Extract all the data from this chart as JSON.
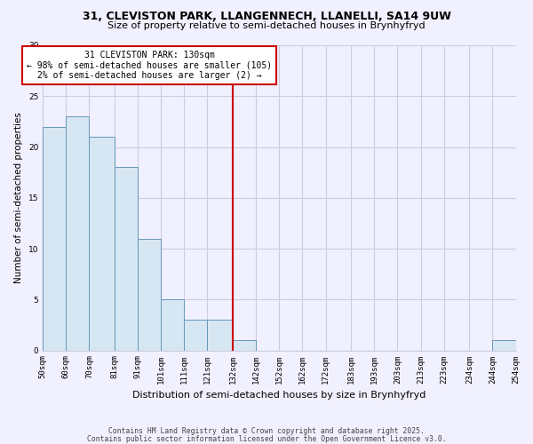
{
  "title_line1": "31, CLEVISTON PARK, LLANGENNECH, LLANELLI, SA14 9UW",
  "title_line2": "Size of property relative to semi-detached houses in Brynhyfryd",
  "xlabel": "Distribution of semi-detached houses by size in Brynhyfryd",
  "ylabel": "Number of semi-detached properties",
  "bins": [
    50,
    60,
    70,
    81,
    91,
    101,
    111,
    121,
    132,
    142,
    152,
    162,
    172,
    183,
    193,
    203,
    213,
    223,
    234,
    244,
    254
  ],
  "counts": [
    22,
    23,
    21,
    18,
    11,
    5,
    3,
    3,
    1,
    0,
    0,
    0,
    0,
    0,
    0,
    0,
    0,
    0,
    0,
    1
  ],
  "tick_labels": [
    "50sqm",
    "60sqm",
    "70sqm",
    "81sqm",
    "91sqm",
    "101sqm",
    "111sqm",
    "121sqm",
    "132sqm",
    "142sqm",
    "152sqm",
    "162sqm",
    "172sqm",
    "183sqm",
    "193sqm",
    "203sqm",
    "213sqm",
    "223sqm",
    "234sqm",
    "244sqm",
    "254sqm"
  ],
  "bar_color": "#d6e6f2",
  "bar_edge_color": "#6699bb",
  "vline_x": 132,
  "vline_color": "#cc0000",
  "annotation_title": "31 CLEVISTON PARK: 130sqm",
  "annotation_line1": "← 98% of semi-detached houses are smaller (105)",
  "annotation_line2": "2% of semi-detached houses are larger (2) →",
  "ylim": [
    0,
    30
  ],
  "yticks": [
    0,
    5,
    10,
    15,
    20,
    25,
    30
  ],
  "footnote1": "Contains HM Land Registry data © Crown copyright and database right 2025.",
  "footnote2": "Contains public sector information licensed under the Open Government Licence v3.0.",
  "bg_color": "#f0f0ff",
  "grid_color": "#ccccdd",
  "title_fontsize": 9,
  "subtitle_fontsize": 8,
  "ylabel_fontsize": 7.5,
  "xlabel_fontsize": 8,
  "tick_fontsize": 6.5,
  "annot_fontsize": 7,
  "footnote_fontsize": 5.8
}
